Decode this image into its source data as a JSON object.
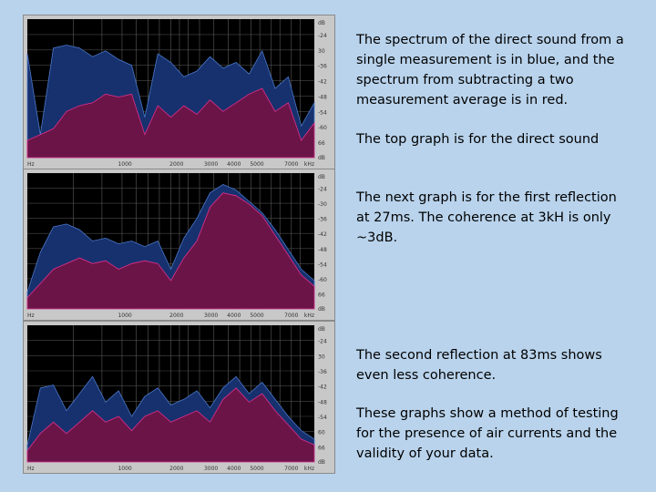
{
  "captions": {
    "p1": "The spectrum of the direct sound from a single measurement is in blue, and the spectrum from subtracting a two measurement average is in red.",
    "p2": "The top graph is for the direct sound",
    "p3": "The next graph is for the first reflection at 27ms. The coherence at 3kH is only ~3dB.",
    "p4": "The second reflection at 83ms shows even less coherence.",
    "p5": "These graphs show a method of testing for the presence of air currents and the validity of your data."
  },
  "colors": {
    "blue": "#17316e",
    "red": "#6b1448",
    "red_edge": "#e0308a",
    "blue_edge": "#4a78c8",
    "plot_bg": "#000000"
  },
  "chart_data": [
    {
      "type": "area",
      "title": "",
      "xlabel": "",
      "ylabel": "",
      "x_ticks": [
        "Hz",
        "1000",
        "2000",
        "3000",
        "4000",
        "5000",
        "7000",
        "kHz"
      ],
      "y_ticks": [
        "dB",
        "-24",
        "30",
        "-36",
        "-42",
        "-48",
        "-54",
        "-60",
        "66",
        "dB"
      ],
      "series": [
        {
          "values": [
            -30,
            -58,
            -28,
            -27,
            -28,
            -31,
            -29,
            -32,
            -34,
            -52,
            -30,
            -33,
            -38,
            -36,
            -31,
            -35,
            -33,
            -37,
            -29,
            -42,
            -38,
            -55,
            -47
          ]
        },
        {
          "values": [
            -60,
            -58,
            -56,
            -50,
            -48,
            -47,
            -44,
            -45,
            -44,
            -58,
            -48,
            -52,
            -48,
            -51,
            -46,
            -50,
            -47,
            -44,
            -42,
            -50,
            -47,
            -60,
            -54
          ]
        }
      ]
    },
    {
      "type": "area",
      "title": "",
      "xlabel": "",
      "ylabel": "",
      "x_ticks": [
        "Hz",
        "1000",
        "2000",
        "3000",
        "4000",
        "5000",
        "7000",
        "kHz"
      ],
      "y_ticks": [
        "dB",
        "-24",
        "-30",
        "-36",
        "-42",
        "-48",
        "-54",
        "-60",
        "66",
        "dB"
      ],
      "series": [
        {
          "values": [
            -60,
            -46,
            -37,
            -36,
            -38,
            -42,
            -41,
            -43,
            -42,
            -44,
            -42,
            -52,
            -41,
            -34,
            -25,
            -22,
            -24,
            -28,
            -32,
            -38,
            -45,
            -52,
            -56
          ]
        },
        {
          "values": [
            -62,
            -57,
            -52,
            -50,
            -48,
            -50,
            -49,
            -52,
            -50,
            -49,
            -50,
            -56,
            -48,
            -42,
            -30,
            -25,
            -26,
            -29,
            -33,
            -40,
            -47,
            -54,
            -58
          ]
        }
      ]
    },
    {
      "type": "area",
      "title": "",
      "xlabel": "",
      "ylabel": "",
      "x_ticks": [
        "Hz",
        "1000",
        "2000",
        "3000",
        "4000",
        "5000",
        "7000",
        "kHz"
      ],
      "y_ticks": [
        "dB",
        "-24",
        "30",
        "-36",
        "-42",
        "-48",
        "-54",
        "60",
        "66",
        "dB"
      ],
      "series": [
        {
          "values": [
            -60,
            -40,
            -39,
            -48,
            -42,
            -36,
            -45,
            -41,
            -50,
            -43,
            -40,
            -46,
            -44,
            -41,
            -47,
            -40,
            -36,
            -42,
            -38,
            -44,
            -50,
            -55,
            -58
          ]
        },
        {
          "values": [
            -62,
            -56,
            -52,
            -56,
            -52,
            -48,
            -52,
            -50,
            -55,
            -50,
            -48,
            -52,
            -50,
            -48,
            -52,
            -44,
            -40,
            -45,
            -42,
            -48,
            -53,
            -58,
            -60
          ]
        }
      ]
    }
  ]
}
